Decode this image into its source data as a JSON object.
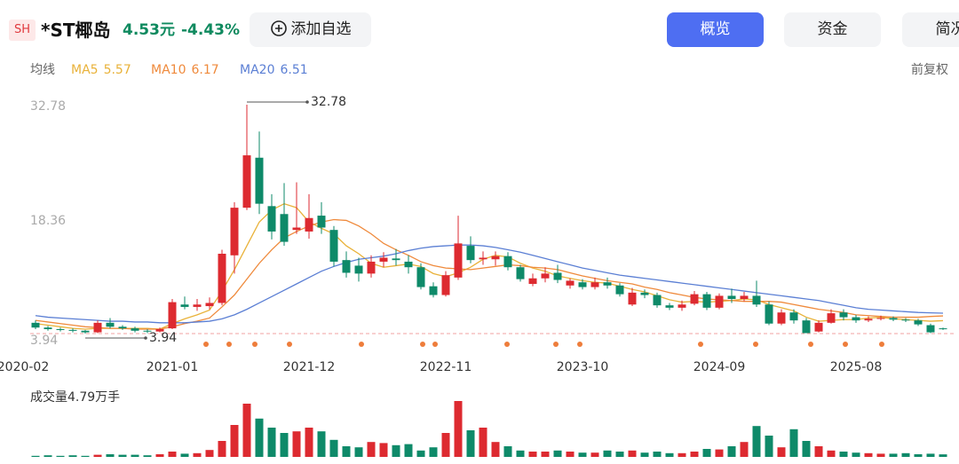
{
  "header": {
    "exchange": "SH",
    "name": "*ST椰岛",
    "price": "4.53元",
    "change": "-4.43%",
    "add_button": "添加自选",
    "tabs": [
      "概览",
      "资金",
      "简况"
    ]
  },
  "chart_data": {
    "type": "candlestick",
    "ma_label": "均线",
    "adjust_label": "前复权",
    "categories": [
      "2020-02",
      null,
      null,
      null,
      null,
      null,
      null,
      null,
      null,
      null,
      null,
      "2021-01",
      null,
      null,
      null,
      null,
      null,
      null,
      null,
      null,
      null,
      null,
      "2021-12",
      null,
      null,
      null,
      null,
      null,
      null,
      null,
      null,
      null,
      null,
      "2022-11",
      null,
      null,
      null,
      null,
      null,
      null,
      null,
      null,
      null,
      null,
      "2023-10",
      null,
      null,
      null,
      null,
      null,
      null,
      null,
      null,
      null,
      null,
      "2024-09",
      null,
      null,
      null,
      null,
      null,
      null,
      null,
      null,
      null,
      null,
      "2025-08",
      null,
      null,
      null,
      null,
      null,
      null,
      null
    ],
    "open": [
      5.3,
      4.7,
      4.5,
      4.4,
      4.3,
      4.1,
      5.3,
      4.8,
      4.6,
      4.3,
      4.2,
      4.6,
      7.6,
      7.3,
      7.4,
      7.8,
      13.8,
      19.8,
      26.1,
      20.0,
      19.0,
      17.0,
      16.8,
      18.8,
      17.0,
      13.2,
      12.5,
      11.5,
      13.0,
      13.4,
      13.0,
      12.3,
      9.9,
      8.8,
      11.0,
      15.0,
      13.3,
      13.3,
      13.7,
      12.3,
      10.2,
      10.9,
      11.6,
      10.0,
      10.4,
      9.8,
      10.4,
      10.0,
      7.6,
      9.1,
      8.8,
      7.5,
      7.2,
      7.7,
      8.9,
      7.2,
      8.7,
      8.3,
      8.7,
      7.6,
      5.2,
      6.6,
      5.6,
      4.2,
      5.3,
      6.6,
      6.0,
      5.6,
      5.8,
      5.9,
      5.7,
      5.6,
      5.0,
      4.6
    ],
    "close": [
      4.7,
      4.5,
      4.4,
      4.3,
      4.1,
      5.3,
      4.8,
      4.6,
      4.3,
      4.2,
      4.5,
      7.9,
      7.3,
      7.6,
      7.8,
      14.0,
      19.8,
      26.4,
      20.3,
      16.8,
      15.5,
      17.3,
      18.5,
      17.3,
      13.0,
      11.6,
      11.5,
      13.0,
      13.5,
      13.2,
      12.3,
      9.8,
      8.8,
      11.3,
      15.3,
      13.2,
      13.5,
      13.7,
      12.3,
      10.8,
      10.9,
      11.5,
      10.7,
      10.6,
      9.8,
      10.4,
      10.0,
      8.9,
      9.1,
      8.8,
      7.5,
      7.2,
      7.6,
      8.9,
      7.2,
      8.7,
      8.3,
      8.7,
      7.6,
      5.2,
      6.6,
      5.6,
      4.0,
      5.3,
      6.5,
      6.0,
      5.6,
      5.8,
      5.9,
      5.7,
      5.6,
      5.1,
      4.1,
      4.53
    ],
    "high": [
      5.6,
      4.9,
      4.7,
      4.6,
      4.4,
      5.6,
      5.9,
      5.0,
      4.8,
      4.5,
      4.7,
      8.3,
      8.6,
      8.3,
      8.5,
      14.5,
      20.5,
      32.78,
      29.4,
      21.5,
      22.9,
      23.0,
      21.5,
      20.5,
      17.5,
      14.3,
      13.5,
      13.8,
      14.2,
      14.6,
      13.8,
      12.8,
      10.4,
      11.8,
      18.8,
      16.2,
      14.3,
      14.3,
      14.2,
      12.6,
      11.5,
      12.3,
      12.6,
      10.9,
      10.8,
      11.0,
      11.0,
      10.3,
      9.7,
      9.5,
      9.1,
      7.8,
      8.1,
      9.3,
      9.2,
      9.0,
      9.6,
      9.2,
      10.6,
      8.0,
      7.0,
      7.0,
      5.9,
      5.6,
      7.0,
      7.0,
      6.3,
      6.1,
      6.2,
      6.1,
      5.9,
      5.8,
      5.2,
      4.7
    ],
    "low": [
      4.5,
      4.3,
      4.2,
      4.1,
      3.94,
      4.0,
      4.6,
      4.4,
      4.1,
      4.0,
      4.1,
      4.5,
      7.0,
      6.8,
      7.0,
      7.5,
      11.5,
      19.5,
      19.0,
      15.8,
      15.0,
      16.5,
      15.9,
      16.5,
      12.4,
      11.0,
      10.5,
      11.0,
      12.3,
      12.5,
      11.5,
      9.5,
      8.5,
      8.6,
      10.7,
      12.8,
      12.6,
      12.5,
      11.9,
      10.5,
      9.9,
      10.4,
      10.3,
      9.6,
      9.5,
      9.5,
      9.6,
      8.6,
      7.4,
      8.4,
      7.2,
      6.9,
      6.8,
      7.5,
      6.9,
      7.0,
      7.8,
      8.0,
      7.3,
      5.0,
      5.0,
      5.2,
      4.0,
      4.1,
      5.2,
      5.6,
      5.3,
      5.4,
      5.6,
      5.5,
      5.4,
      4.9,
      4.0,
      4.4
    ],
    "volume_label": "成交量",
    "volume_unit": "万手",
    "volume": [
      2,
      3,
      2,
      3,
      2,
      4,
      5,
      4,
      4,
      3,
      5,
      10,
      6,
      7,
      13,
      30,
      60,
      100,
      72,
      55,
      45,
      48,
      55,
      48,
      32,
      20,
      18,
      28,
      26,
      22,
      24,
      12,
      18,
      45,
      105,
      50,
      55,
      28,
      20,
      12,
      10,
      10,
      12,
      10,
      8,
      8,
      12,
      10,
      12,
      8,
      10,
      7,
      7,
      10,
      15,
      14,
      20,
      28,
      58,
      40,
      18,
      52,
      30,
      20,
      12,
      10,
      8,
      7,
      6,
      6,
      7,
      5,
      6,
      4.79
    ],
    "ma": [
      {
        "name": "MA5",
        "color": "#e9b23a",
        "values": [
          5.2,
          5.0,
          4.8,
          4.6,
          4.5,
          4.6,
          4.6,
          4.6,
          4.6,
          4.6,
          4.5,
          5.2,
          5.8,
          6.3,
          6.9,
          9.3,
          12.0,
          15.0,
          18.0,
          19.5,
          20.3,
          19.8,
          18.0,
          17.2,
          16.5,
          15.0,
          14.0,
          12.8,
          12.3,
          12.5,
          12.7,
          12.4,
          11.5,
          11.1,
          11.6,
          12.3,
          13.3,
          13.8,
          13.6,
          12.8,
          12.2,
          11.8,
          11.2,
          10.9,
          10.6,
          10.4,
          10.3,
          9.9,
          9.5,
          9.2,
          8.7,
          8.2,
          7.9,
          8.0,
          7.9,
          8.0,
          8.1,
          8.3,
          8.2,
          7.6,
          7.2,
          6.8,
          6.0,
          5.5,
          5.6,
          5.7,
          5.7,
          5.9,
          6.0,
          5.8,
          5.7,
          5.6,
          5.5,
          5.57
        ]
      },
      {
        "name": "MA10",
        "color": "#ef8a3c",
        "values": [
          5.6,
          5.4,
          5.2,
          5.0,
          4.8,
          4.7,
          4.6,
          4.6,
          4.5,
          4.5,
          4.5,
          4.8,
          5.2,
          5.5,
          5.9,
          7.3,
          8.8,
          10.8,
          12.8,
          14.5,
          16.0,
          16.8,
          17.5,
          18.0,
          18.3,
          18.2,
          17.5,
          16.5,
          15.3,
          14.5,
          13.8,
          13.0,
          12.5,
          12.2,
          12.1,
          12.0,
          12.2,
          12.4,
          12.6,
          12.5,
          12.3,
          12.2,
          12.0,
          11.6,
          11.2,
          10.9,
          10.6,
          10.4,
          10.2,
          9.8,
          9.5,
          9.1,
          8.8,
          8.5,
          8.3,
          8.2,
          8.1,
          8.0,
          8.0,
          8.0,
          7.9,
          7.6,
          7.3,
          7.0,
          6.8,
          6.6,
          6.3,
          6.2,
          6.1,
          6.0,
          6.0,
          6.0,
          6.1,
          6.17
        ]
      },
      {
        "name": "MA20",
        "color": "#5b7fd4",
        "values": [
          6.2,
          6.0,
          5.9,
          5.8,
          5.7,
          5.6,
          5.5,
          5.5,
          5.4,
          5.4,
          5.3,
          5.3,
          5.3,
          5.4,
          5.5,
          5.8,
          6.3,
          7.0,
          7.8,
          8.6,
          9.4,
          10.2,
          11.0,
          11.8,
          12.4,
          12.9,
          13.3,
          13.5,
          13.7,
          14.0,
          14.4,
          14.7,
          14.9,
          15.0,
          15.1,
          15.1,
          15.0,
          14.8,
          14.5,
          14.2,
          13.8,
          13.4,
          13.0,
          12.6,
          12.2,
          11.9,
          11.6,
          11.3,
          11.1,
          10.9,
          10.7,
          10.5,
          10.3,
          10.1,
          9.9,
          9.7,
          9.5,
          9.3,
          9.1,
          8.9,
          8.7,
          8.5,
          8.3,
          8.1,
          7.8,
          7.5,
          7.2,
          7.0,
          6.9,
          6.8,
          6.7,
          6.6,
          6.55,
          6.51
        ]
      }
    ],
    "up_color": "#dd2a30",
    "down_color": "#0e8a69",
    "ylim": [
      3.94,
      32.78
    ],
    "yticks": [
      3.94,
      18.36,
      32.78
    ]
  }
}
